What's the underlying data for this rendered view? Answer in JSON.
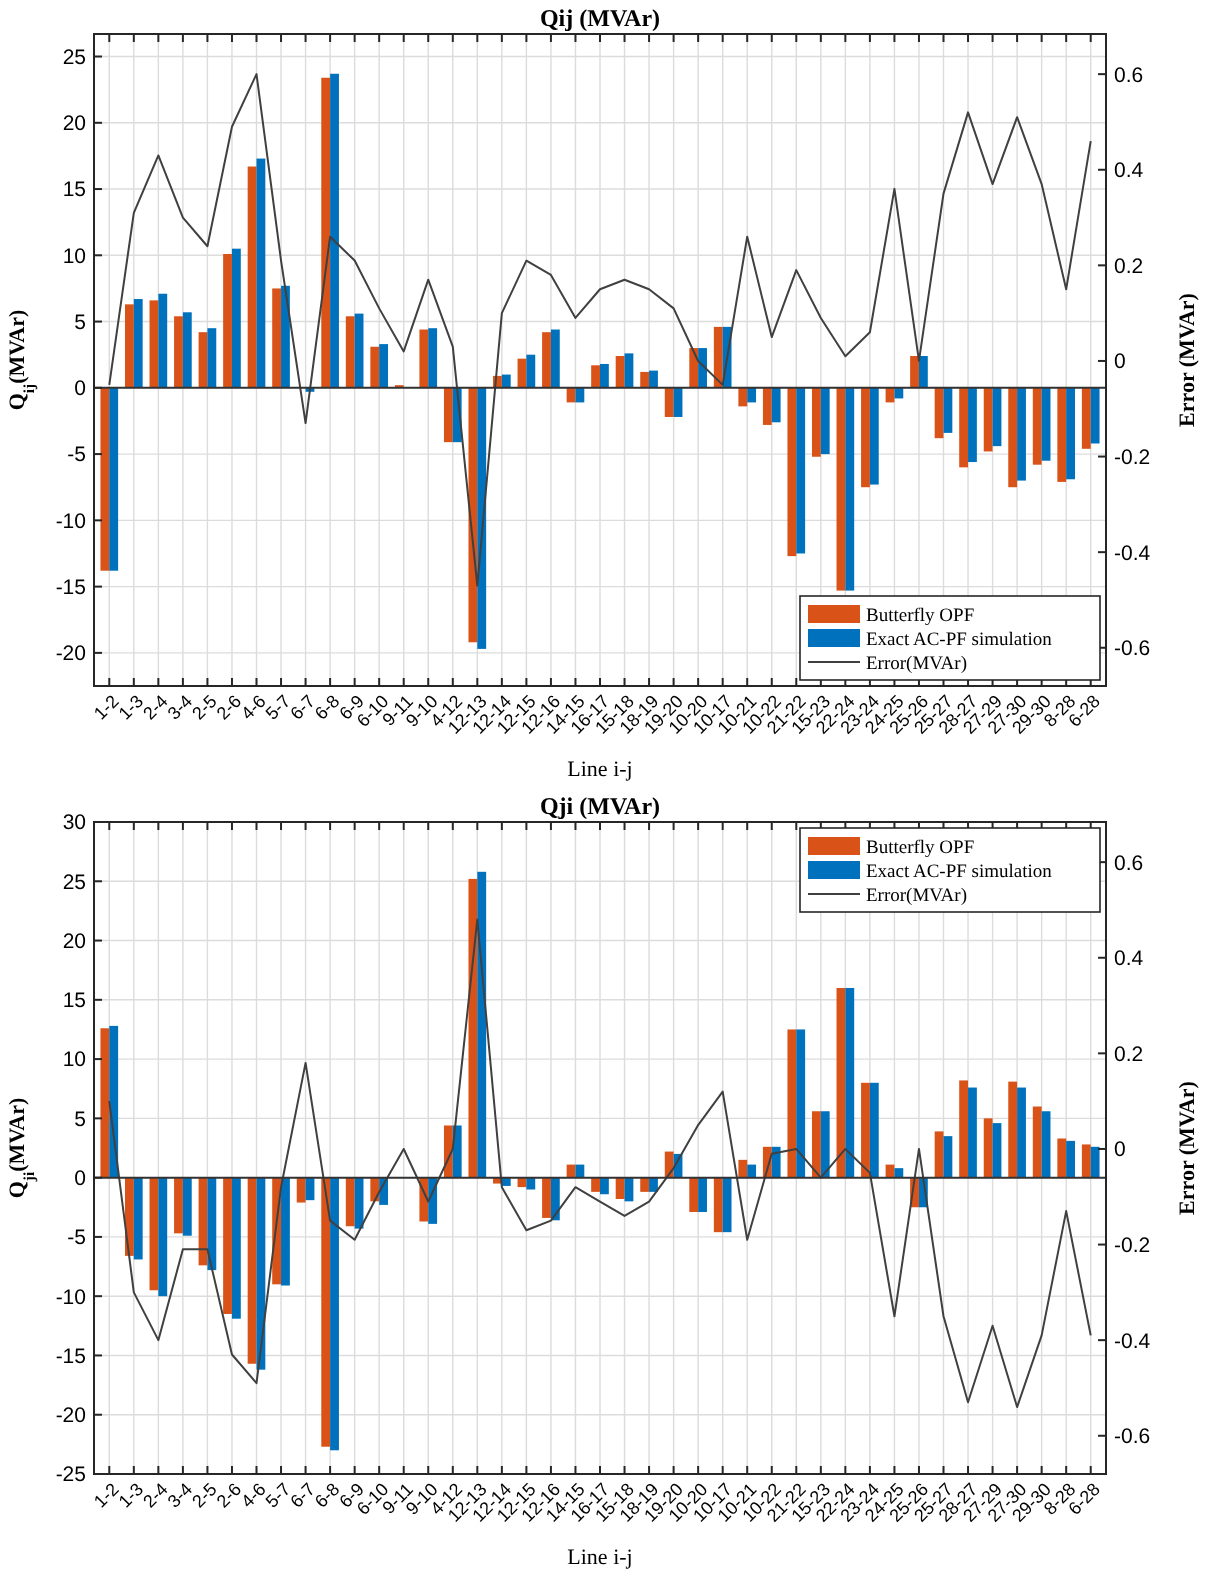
{
  "chart_data": [
    {
      "type": "bar",
      "title": "Qij (MVAr)",
      "xlabel": "Line i-j",
      "ylabel": "Q$_{ij}$(MVAr)",
      "y2label": "Error (MVAr)",
      "categories": [
        "1-2",
        "1-3",
        "2-4",
        "3-4",
        "2-5",
        "2-6",
        "4-6",
        "5-7",
        "6-7",
        "6-8",
        "6-9",
        "6-10",
        "9-11",
        "9-10",
        "4-12",
        "12-13",
        "12-14",
        "12-15",
        "12-16",
        "14-15",
        "16-17",
        "15-18",
        "18-19",
        "19-20",
        "10-20",
        "10-17",
        "10-21",
        "10-22",
        "21-22",
        "15-23",
        "22-24",
        "23-24",
        "24-25",
        "25-26",
        "25-27",
        "28-27",
        "27-29",
        "27-30",
        "29-30",
        "8-28",
        "6-28"
      ],
      "ylim": [
        -22.5,
        26.7
      ],
      "yticks": [
        -20,
        -15,
        -10,
        -5,
        0,
        5,
        10,
        15,
        20,
        25
      ],
      "y2lim": [
        -0.68,
        0.684
      ],
      "y2ticks": [
        -0.6,
        -0.4,
        -0.2,
        0,
        0.2,
        0.4,
        0.6
      ],
      "grid": true,
      "legend": "bottom right",
      "series": [
        {
          "name": "Butterfly OPF",
          "color": "#d95319",
          "values": [
            -13.8,
            6.3,
            6.6,
            5.4,
            4.2,
            10.1,
            16.7,
            7.5,
            null,
            23.4,
            5.4,
            3.1,
            0.2,
            4.4,
            -4.1,
            -19.2,
            0.9,
            2.2,
            4.2,
            -1.1,
            1.7,
            2.4,
            1.2,
            -2.2,
            3.0,
            4.6,
            -1.4,
            -2.8,
            -12.7,
            -5.2,
            -15.3,
            -7.5,
            -1.1,
            2.4,
            -3.8,
            -6.0,
            -4.8,
            -7.5,
            -5.8,
            -7.1,
            -4.6
          ]
        },
        {
          "name": "Exact AC-PF simulation",
          "color": "#0072bd",
          "values": [
            -13.8,
            6.7,
            7.1,
            5.7,
            4.5,
            10.5,
            17.3,
            7.7,
            -0.3,
            23.7,
            5.6,
            3.3,
            0,
            4.5,
            -4.1,
            -19.7,
            1.0,
            2.5,
            4.4,
            -1.1,
            1.8,
            2.6,
            1.3,
            -2.2,
            3.0,
            4.6,
            -1.1,
            -2.6,
            -12.5,
            -5.0,
            -15.3,
            -7.3,
            -0.8,
            2.4,
            -3.4,
            -5.6,
            -4.4,
            -7.0,
            -5.5,
            -6.9,
            -4.2
          ]
        },
        {
          "name": "Error(MVAr)",
          "type": "line",
          "axis": "y2",
          "color": "#404040",
          "values": [
            -0.05,
            0.31,
            0.43,
            0.3,
            0.24,
            0.49,
            0.6,
            0.21,
            -0.13,
            0.26,
            0.21,
            0.11,
            0.02,
            0.17,
            0.03,
            -0.47,
            0.1,
            0.21,
            0.18,
            0.09,
            0.15,
            0.17,
            0.15,
            0.11,
            0.0,
            -0.05,
            0.26,
            0.05,
            0.19,
            0.09,
            0.01,
            0.06,
            0.36,
            0.0,
            0.35,
            0.52,
            0.37,
            0.51,
            0.37,
            0.15,
            0.46
          ]
        }
      ]
    },
    {
      "type": "bar",
      "title": "Qji (MVAr)",
      "xlabel": "Line i-j",
      "ylabel": "Q$_{ji}$(MVAr)",
      "y2label": "Error (MVAr)",
      "categories": [
        "1-2",
        "1-3",
        "2-4",
        "3-4",
        "2-5",
        "2-6",
        "4-6",
        "5-7",
        "6-7",
        "6-8",
        "6-9",
        "6-10",
        "9-11",
        "9-10",
        "4-12",
        "12-13",
        "12-14",
        "12-15",
        "12-16",
        "14-15",
        "16-17",
        "15-18",
        "18-19",
        "19-20",
        "10-20",
        "10-17",
        "10-21",
        "10-22",
        "21-22",
        "15-23",
        "22-24",
        "23-24",
        "24-25",
        "25-26",
        "25-27",
        "28-27",
        "27-29",
        "27-30",
        "29-30",
        "8-28",
        "6-28"
      ],
      "ylim": [
        -25,
        30
      ],
      "yticks": [
        -25,
        -20,
        -15,
        -10,
        -5,
        0,
        5,
        10,
        15,
        20,
        25,
        30
      ],
      "y2lim": [
        -0.68,
        0.684
      ],
      "y2ticks": [
        -0.6,
        -0.4,
        -0.2,
        0,
        0.2,
        0.4,
        0.6
      ],
      "grid": true,
      "legend": "top right",
      "series": [
        {
          "name": "Butterfly OPF",
          "color": "#d95319",
          "values": [
            12.6,
            -6.6,
            -9.5,
            -4.7,
            -7.4,
            -11.5,
            -15.7,
            -9.0,
            -2.1,
            -22.7,
            -4.1,
            -2.0,
            0,
            -3.7,
            4.4,
            25.2,
            -0.5,
            -0.8,
            -3.4,
            1.1,
            -1.2,
            -1.8,
            -1.2,
            2.2,
            -2.9,
            -4.6,
            1.5,
            2.6,
            12.5,
            5.6,
            16.0,
            8.0,
            1.1,
            -2.5,
            3.9,
            8.2,
            5.0,
            8.1,
            6.0,
            3.3,
            2.8
          ]
        },
        {
          "name": "Exact AC-PF simulation",
          "color": "#0072bd",
          "values": [
            12.8,
            -6.9,
            -10.0,
            -4.9,
            -7.8,
            -11.9,
            -16.2,
            -9.1,
            -1.9,
            -23.0,
            -4.3,
            -2.3,
            0,
            -3.9,
            4.4,
            25.8,
            -0.7,
            -1.0,
            -3.6,
            1.1,
            -1.4,
            -2.0,
            -1.2,
            2.0,
            -2.9,
            -4.6,
            1.1,
            2.6,
            12.5,
            5.6,
            16.0,
            8.0,
            0.8,
            -2.5,
            3.5,
            7.6,
            4.6,
            7.6,
            5.6,
            3.1,
            2.6
          ]
        },
        {
          "name": "Error(MVAr)",
          "type": "line",
          "axis": "y2",
          "color": "#404040",
          "values": [
            0.1,
            -0.3,
            -0.4,
            -0.21,
            -0.21,
            -0.43,
            -0.49,
            -0.08,
            0.18,
            -0.15,
            -0.19,
            -0.09,
            0.0,
            -0.11,
            0.0,
            0.48,
            -0.08,
            -0.17,
            -0.15,
            -0.08,
            -0.11,
            -0.14,
            -0.11,
            -0.04,
            0.05,
            0.12,
            -0.19,
            -0.01,
            0.0,
            -0.06,
            0.0,
            -0.05,
            -0.35,
            0.0,
            -0.35,
            -0.53,
            -0.37,
            -0.54,
            -0.39,
            -0.13,
            -0.39
          ]
        }
      ]
    }
  ]
}
